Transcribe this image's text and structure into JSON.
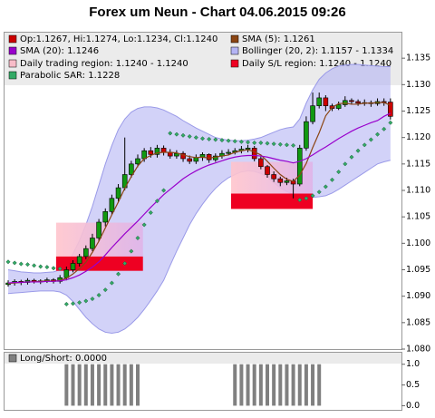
{
  "chart_data": [
    {
      "type": "candlestick",
      "title": "Forex um Neun - Chart 04.06.2015 09:26",
      "ylim": [
        1.08,
        1.14
      ],
      "yticks": [
        {
          "value": 1.08,
          "label": "1.080"
        },
        1.085,
        {
          "value": 1.09,
          "label": "1.090"
        },
        1.095,
        {
          "value": 1.1,
          "label": "1.100"
        },
        1.105,
        {
          "value": 1.11,
          "label": "1.110"
        },
        1.115,
        {
          "value": 1.12,
          "label": "1.120"
        },
        1.125,
        {
          "value": 1.13,
          "label": "1.130"
        },
        1.135
      ],
      "candle_label": "Op:1.1267, Hi:1.1274, Lo:1.1234, Cl:1.1240",
      "candle_label_color": "#cc0000",
      "up_color": "#119911",
      "down_color": "#cc0000",
      "open": [
        1.0922,
        1.0925,
        1.0928,
        1.0926,
        1.093,
        1.0927,
        1.0929,
        1.0931,
        1.0928,
        1.0935,
        1.095,
        1.0962,
        1.0975,
        1.099,
        1.101,
        1.104,
        1.106,
        1.1085,
        1.1105,
        1.113,
        1.115,
        1.116,
        1.1175,
        1.1168,
        1.118,
        1.1172,
        1.1165,
        1.117,
        1.116,
        1.1155,
        1.1162,
        1.1168,
        1.1158,
        1.1165,
        1.117,
        1.1172,
        1.1175,
        1.1178,
        1.118,
        1.116,
        1.1145,
        1.113,
        1.1122,
        1.1115,
        1.1118,
        1.1112,
        1.118,
        1.123,
        1.126,
        1.1275,
        1.126,
        1.1255,
        1.1262,
        1.127,
        1.1268,
        1.1265,
        1.1266,
        1.1264,
        1.1268,
        1.1267
      ],
      "high": [
        1.093,
        1.0932,
        1.0931,
        1.0934,
        1.0933,
        1.0932,
        1.0935,
        1.0934,
        1.094,
        1.0956,
        1.0968,
        1.098,
        1.0996,
        1.1018,
        1.1046,
        1.1066,
        1.1092,
        1.1112,
        1.12,
        1.1156,
        1.1168,
        1.118,
        1.1182,
        1.1186,
        1.1185,
        1.1178,
        1.1176,
        1.1174,
        1.1166,
        1.1168,
        1.1172,
        1.117,
        1.117,
        1.1176,
        1.1178,
        1.118,
        1.1184,
        1.1186,
        1.1184,
        1.1164,
        1.1148,
        1.1136,
        1.1126,
        1.1124,
        1.1122,
        1.1186,
        1.124,
        1.1285,
        1.1285,
        1.128,
        1.1264,
        1.1268,
        1.1278,
        1.1274,
        1.1272,
        1.1272,
        1.127,
        1.1274,
        1.1274,
        1.1274
      ],
      "low": [
        1.0918,
        1.092,
        1.0921,
        1.0922,
        1.0924,
        1.0923,
        1.0925,
        1.0924,
        1.0924,
        1.093,
        1.0945,
        1.0956,
        1.097,
        1.0985,
        1.1004,
        1.1032,
        1.1054,
        1.1078,
        1.11,
        1.1124,
        1.1144,
        1.1154,
        1.1162,
        1.1162,
        1.1166,
        1.116,
        1.116,
        1.1154,
        1.115,
        1.115,
        1.1156,
        1.1152,
        1.1154,
        1.116,
        1.1166,
        1.1168,
        1.117,
        1.1172,
        1.1155,
        1.114,
        1.1124,
        1.1116,
        1.1108,
        1.111,
        1.1085,
        1.1108,
        1.1175,
        1.1225,
        1.1255,
        1.125,
        1.125,
        1.1252,
        1.1258,
        1.1262,
        1.126,
        1.126,
        1.1258,
        1.126,
        1.126,
        1.1234
      ],
      "close": [
        1.0925,
        1.0928,
        1.0926,
        1.093,
        1.0927,
        1.0929,
        1.0931,
        1.0928,
        1.0935,
        1.095,
        1.0962,
        1.0975,
        1.099,
        1.101,
        1.104,
        1.106,
        1.1085,
        1.1105,
        1.113,
        1.115,
        1.116,
        1.1175,
        1.1168,
        1.118,
        1.1172,
        1.1165,
        1.117,
        1.116,
        1.1155,
        1.1162,
        1.1168,
        1.1158,
        1.1165,
        1.117,
        1.1172,
        1.1175,
        1.1178,
        1.118,
        1.116,
        1.1145,
        1.113,
        1.1122,
        1.1115,
        1.1118,
        1.1112,
        1.118,
        1.123,
        1.126,
        1.1275,
        1.126,
        1.1255,
        1.1262,
        1.127,
        1.1268,
        1.1265,
        1.1266,
        1.1264,
        1.1268,
        1.1267,
        1.124
      ],
      "lines": [
        {
          "name": "SMA (5): 1.1261",
          "color": "#8b4513",
          "values": [
            1.0924,
            1.0925,
            1.0926,
            1.0927,
            1.0927,
            1.0928,
            1.0929,
            1.0928,
            1.093,
            1.0934,
            1.0942,
            1.0952,
            1.0964,
            1.0983,
            1.1004,
            1.1029,
            1.1054,
            1.1078,
            1.1104,
            1.1126,
            1.1146,
            1.116,
            1.1166,
            1.1171,
            1.1172,
            1.1172,
            1.1171,
            1.1167,
            1.1164,
            1.1162,
            1.1163,
            1.1161,
            1.1163,
            1.1165,
            1.1167,
            1.1172,
            1.1175,
            1.1177,
            1.1173,
            1.1167,
            1.1155,
            1.1142,
            1.113,
            1.1121,
            1.1117,
            1.1129,
            1.1151,
            1.1181,
            1.1209,
            1.1241,
            1.1257,
            1.1264,
            1.1265,
            1.1263,
            1.1263,
            1.1265,
            1.1265,
            1.1266,
            1.1266,
            1.1261
          ]
        },
        {
          "name": "SMA (20): 1.1246",
          "color": "#9900cc",
          "values": [
            1.0925,
            1.0926,
            1.0926,
            1.0927,
            1.0927,
            1.0927,
            1.0928,
            1.0928,
            1.0929,
            1.0931,
            1.0935,
            1.094,
            1.0947,
            1.0955,
            1.0965,
            1.0978,
            1.0992,
            1.1005,
            1.1018,
            1.103,
            1.1042,
            1.1055,
            1.1068,
            1.108,
            1.1092,
            1.1102,
            1.1112,
            1.1122,
            1.113,
            1.1137,
            1.1143,
            1.1148,
            1.1152,
            1.1156,
            1.116,
            1.1163,
            1.1165,
            1.1166,
            1.1166,
            1.1165,
            1.1163,
            1.116,
            1.1157,
            1.1155,
            1.1152,
            1.1155,
            1.116,
            1.1167,
            1.1175,
            1.1182,
            1.119,
            1.1198,
            1.1205,
            1.1212,
            1.1218,
            1.1223,
            1.1228,
            1.1232,
            1.124,
            1.1246
          ]
        }
      ],
      "bollinger": {
        "name": "Bollinger (20, 2): 1.1157 - 1.1334",
        "color": "#b4b4f4",
        "upper": [
          1.095,
          1.0948,
          1.0946,
          1.0945,
          1.0944,
          1.0944,
          1.0945,
          1.0946,
          1.095,
          1.096,
          1.098,
          1.1005,
          1.1035,
          1.107,
          1.111,
          1.115,
          1.1185,
          1.1215,
          1.1235,
          1.1248,
          1.1255,
          1.1258,
          1.1258,
          1.1256,
          1.1252,
          1.1246,
          1.124,
          1.1232,
          1.1225,
          1.1218,
          1.1212,
          1.1206,
          1.12,
          1.1197,
          1.1195,
          1.1194,
          1.1194,
          1.1195,
          1.1197,
          1.12,
          1.1205,
          1.121,
          1.1215,
          1.1218,
          1.122,
          1.1235,
          1.1265,
          1.129,
          1.131,
          1.1322,
          1.133,
          1.1335,
          1.1337,
          1.1338,
          1.1338,
          1.1337,
          1.1336,
          1.1335,
          1.1334,
          1.1334
        ],
        "lower": [
          1.0905,
          1.0906,
          1.0907,
          1.0908,
          1.0909,
          1.091,
          1.091,
          1.091,
          1.0908,
          1.0902,
          1.089,
          1.0875,
          1.086,
          1.0848,
          1.0838,
          1.0832,
          1.083,
          1.0832,
          1.0838,
          1.0848,
          1.086,
          1.0875,
          1.0892,
          1.091,
          1.093,
          1.0958,
          1.0985,
          1.101,
          1.1035,
          1.1056,
          1.1074,
          1.109,
          1.1104,
          1.1115,
          1.1124,
          1.113,
          1.1135,
          1.1137,
          1.1136,
          1.1132,
          1.1125,
          1.1115,
          1.1105,
          1.1098,
          1.1092,
          1.109,
          1.1088,
          1.1087,
          1.1088,
          1.109,
          1.1095,
          1.1102,
          1.111,
          1.1118,
          1.1126,
          1.1134,
          1.1142,
          1.115,
          1.1154,
          1.1157
        ]
      },
      "trading_region_label": "Daily trading region: 1.1240 - 1.1240",
      "trading_region_color": "#f8bcc8",
      "sl_region_label": "Daily S/L region: 1.1240 - 1.1240",
      "sl_region_color": "#ee0022",
      "regions": [
        {
          "start": 7.4,
          "end": 20.8,
          "trading": [
            1.0948,
            1.1039
          ],
          "sl": [
            1.0948,
            1.0975
          ]
        },
        {
          "start": 34.4,
          "end": 47,
          "trading": [
            1.1085,
            1.1154
          ],
          "sl": [
            1.1065,
            1.1094
          ]
        }
      ],
      "sar": {
        "name": "Parabolic SAR: 1.1228",
        "color": "#33aa66",
        "values": [
          1.0965,
          1.0963,
          1.0961,
          1.096,
          1.0958,
          1.0956,
          1.0955,
          1.0953,
          1.0952,
          1.0885,
          1.0886,
          1.0888,
          1.0891,
          1.0895,
          1.0902,
          1.0912,
          1.0925,
          1.0942,
          1.0962,
          1.0985,
          1.101,
          1.1035,
          1.1058,
          1.108,
          1.11,
          1.1208,
          1.1206,
          1.1204,
          1.1202,
          1.12,
          1.1198,
          1.1197,
          1.1196,
          1.1195,
          1.1194,
          1.1193,
          1.1192,
          1.1191,
          1.119,
          1.119,
          1.1189,
          1.1188,
          1.1187,
          1.1186,
          1.1185,
          1.1082,
          1.1085,
          1.109,
          1.1097,
          1.1107,
          1.112,
          1.1135,
          1.115,
          1.1163,
          1.1175,
          1.1186,
          1.1196,
          1.1206,
          1.1216,
          1.1228
        ]
      }
    },
    {
      "type": "bar",
      "label": "Long/Short: 0.0000",
      "color": "#808080",
      "ylim": [
        -0.1,
        1.3
      ],
      "yticks": [
        {
          "value": 0,
          "label": "0.0"
        },
        0.5,
        {
          "value": 1,
          "label": "1.0"
        }
      ],
      "values": [
        0,
        0,
        0,
        0,
        0,
        0,
        0,
        0,
        0,
        1,
        1,
        1,
        1,
        1,
        1,
        1,
        1,
        1,
        1,
        1,
        1,
        0,
        0,
        0,
        0,
        0,
        0,
        0,
        0,
        0,
        0,
        0,
        0,
        0,
        0,
        1,
        1,
        1,
        1,
        1,
        1,
        1,
        1,
        1,
        1,
        1,
        1,
        1,
        1,
        0,
        0,
        0,
        0,
        0,
        0,
        0,
        0,
        0,
        0,
        0
      ]
    }
  ]
}
